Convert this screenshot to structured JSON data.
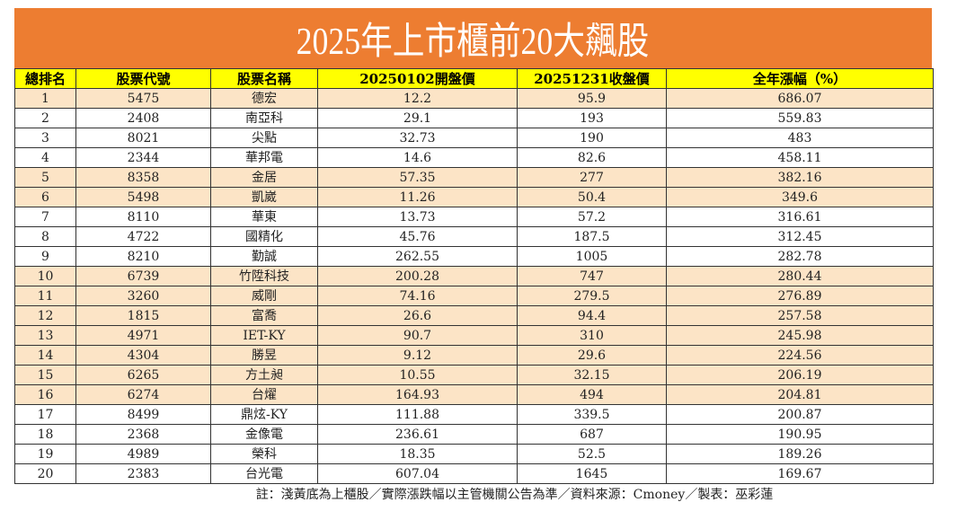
{
  "title": "2025年上市櫃前20大飆股",
  "colors": {
    "banner": "#ED7D31",
    "header": "#FFFF00",
    "otc_highlight": "#FCE4C6"
  },
  "columns": [
    "總排名",
    "股票代號",
    "股票名稱",
    "20250102開盤價",
    "20251231收盤價",
    "全年漲幅（%）"
  ],
  "rows": [
    {
      "rank": "1",
      "code": "5475",
      "name": "德宏",
      "open": "12.2",
      "close": "95.9",
      "gain": "686.07",
      "otc": true
    },
    {
      "rank": "2",
      "code": "2408",
      "name": "南亞科",
      "open": "29.1",
      "close": "193",
      "gain": "559.83",
      "otc": false
    },
    {
      "rank": "3",
      "code": "8021",
      "name": "尖點",
      "open": "32.73",
      "close": "190",
      "gain": "483",
      "otc": false
    },
    {
      "rank": "4",
      "code": "2344",
      "name": "華邦電",
      "open": "14.6",
      "close": "82.6",
      "gain": "458.11",
      "otc": false
    },
    {
      "rank": "5",
      "code": "8358",
      "name": "金居",
      "open": "57.35",
      "close": "277",
      "gain": "382.16",
      "otc": true
    },
    {
      "rank": "6",
      "code": "5498",
      "name": "凱崴",
      "open": "11.26",
      "close": "50.4",
      "gain": "349.6",
      "otc": true
    },
    {
      "rank": "7",
      "code": "8110",
      "name": "華東",
      "open": "13.73",
      "close": "57.2",
      "gain": "316.61",
      "otc": false
    },
    {
      "rank": "8",
      "code": "4722",
      "name": "國精化",
      "open": "45.76",
      "close": "187.5",
      "gain": "312.45",
      "otc": false
    },
    {
      "rank": "9",
      "code": "8210",
      "name": "勤誠",
      "open": "262.55",
      "close": "1005",
      "gain": "282.78",
      "otc": false
    },
    {
      "rank": "10",
      "code": "6739",
      "name": "竹陞科技",
      "open": "200.28",
      "close": "747",
      "gain": "280.44",
      "otc": true
    },
    {
      "rank": "11",
      "code": "3260",
      "name": "威剛",
      "open": "74.16",
      "close": "279.5",
      "gain": "276.89",
      "otc": true
    },
    {
      "rank": "12",
      "code": "1815",
      "name": "富喬",
      "open": "26.6",
      "close": "94.4",
      "gain": "257.58",
      "otc": true
    },
    {
      "rank": "13",
      "code": "4971",
      "name": "IET-KY",
      "open": "90.7",
      "close": "310",
      "gain": "245.98",
      "otc": true
    },
    {
      "rank": "14",
      "code": "4304",
      "name": "勝昱",
      "open": "9.12",
      "close": "29.6",
      "gain": "224.56",
      "otc": true
    },
    {
      "rank": "15",
      "code": "6265",
      "name": "方土昶",
      "open": "10.55",
      "close": "32.15",
      "gain": "206.19",
      "otc": true
    },
    {
      "rank": "16",
      "code": "6274",
      "name": "台燿",
      "open": "164.93",
      "close": "494",
      "gain": "204.81",
      "otc": true
    },
    {
      "rank": "17",
      "code": "8499",
      "name": "鼎炫-KY",
      "open": "111.88",
      "close": "339.5",
      "gain": "200.87",
      "otc": false
    },
    {
      "rank": "18",
      "code": "2368",
      "name": "金像電",
      "open": "236.61",
      "close": "687",
      "gain": "190.95",
      "otc": false
    },
    {
      "rank": "19",
      "code": "4989",
      "name": "榮科",
      "open": "18.35",
      "close": "52.5",
      "gain": "189.26",
      "otc": false
    },
    {
      "rank": "20",
      "code": "2383",
      "name": "台光電",
      "open": "607.04",
      "close": "1645",
      "gain": "169.67",
      "otc": false
    }
  ],
  "footer": "註：淺黃底為上櫃股／實際漲跌幅以主管機關公告為準／資料來源：Cmoney／製表：巫彩蓮"
}
